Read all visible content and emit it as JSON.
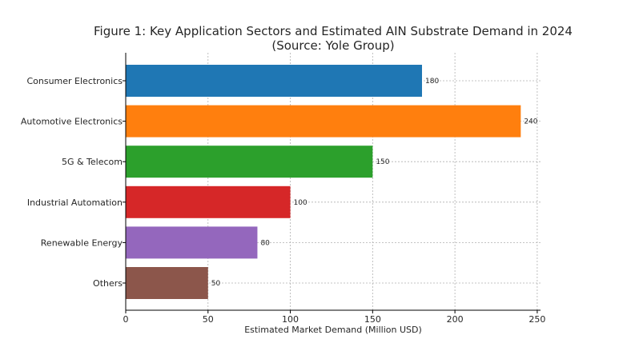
{
  "chart_data": {
    "type": "bar",
    "orientation": "horizontal",
    "title": "Figure 1: Key Application Sectors and Estimated AIN Substrate Demand in 2024",
    "subtitle": "(Source: Yole Group)",
    "xlabel": "Estimated Market Demand (Million USD)",
    "ylabel": "",
    "categories": [
      "Consumer Electronics",
      "Automotive Electronics",
      "5G & Telecom",
      "Industrial Automation",
      "Renewable Energy",
      "Others"
    ],
    "values": [
      180,
      240,
      150,
      100,
      80,
      50
    ],
    "data_labels": [
      "180",
      "240",
      "150",
      "100",
      "80",
      "50"
    ],
    "colors": [
      "#1f77b4",
      "#ff7f0e",
      "#2ca02c",
      "#d62728",
      "#9467bd",
      "#8c564b"
    ],
    "xlim": [
      0,
      252
    ],
    "xticks": [
      0,
      50,
      100,
      150,
      200,
      250
    ],
    "xtick_labels": [
      "0",
      "50",
      "100",
      "150",
      "200",
      "250"
    ],
    "grid": true,
    "grid_style": "dashed",
    "legend": "none"
  }
}
